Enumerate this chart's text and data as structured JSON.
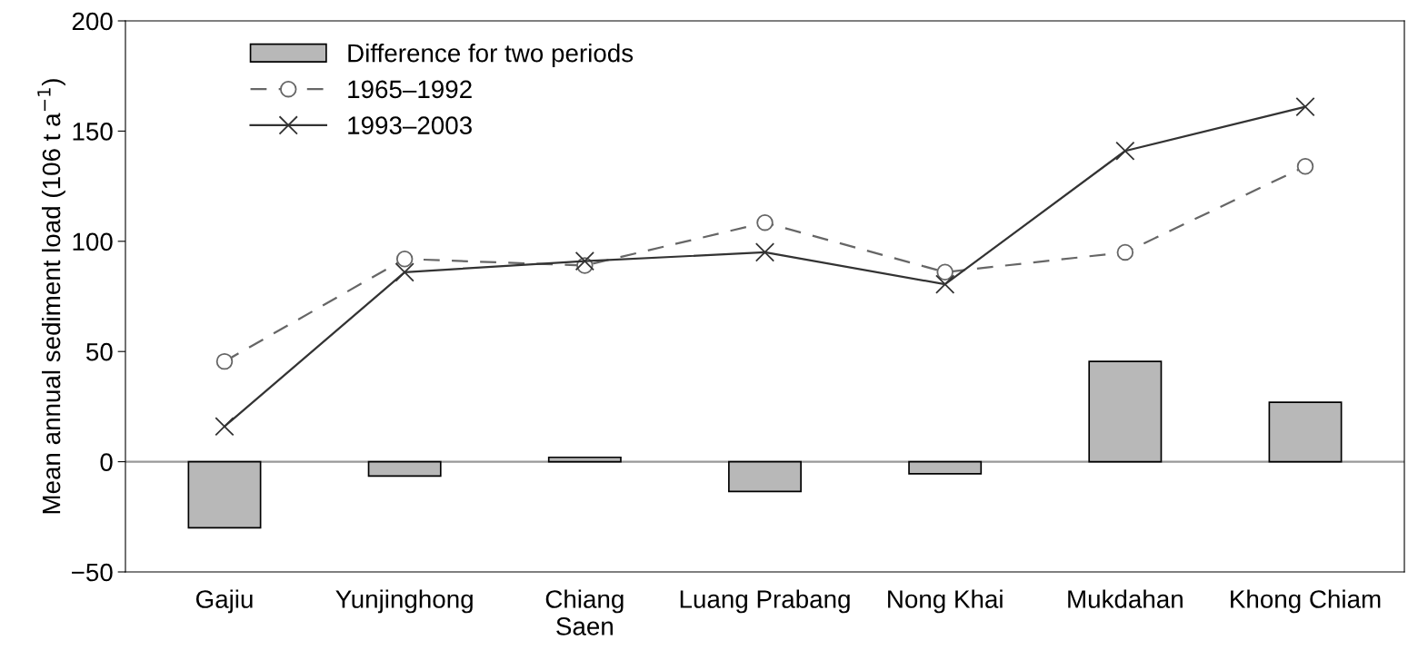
{
  "chart_data": {
    "type": "bar",
    "ylabel": "Mean annual sediment load (106 t a$^{−1}$)",
    "categories": [
      "Gajiu",
      "Yunjinghong",
      "Chiang\nSaen",
      "Luang Prabang",
      "Nong Khai",
      "Mukdahan",
      "Khong Chiam"
    ],
    "series": [
      {
        "name": "Difference for two periods",
        "color": "#b8b8b8",
        "values": [
          -30,
          -6.5,
          2,
          -13.5,
          -5.5,
          45.5,
          27
        ]
      },
      {
        "name": "1965–1992",
        "type": "line",
        "color": "#666666",
        "marker": "circle",
        "line_style": "dashed",
        "values": [
          45.5,
          92,
          89,
          108.5,
          86,
          95,
          134
        ]
      },
      {
        "name": "1993–2003",
        "type": "line",
        "color": "#333333",
        "marker": "cross",
        "line_style": "solid",
        "values": [
          16,
          86,
          91,
          95,
          80.5,
          141,
          161
        ]
      }
    ],
    "ylim": [
      -50,
      200
    ],
    "yticks": [
      {
        "value": -50,
        "label": "−50"
      },
      0,
      50,
      100,
      150,
      200
    ],
    "ref_lines": [
      {
        "axis": "y",
        "value": 0,
        "color": "#999999"
      }
    ],
    "grid": false,
    "legend": "top left"
  }
}
